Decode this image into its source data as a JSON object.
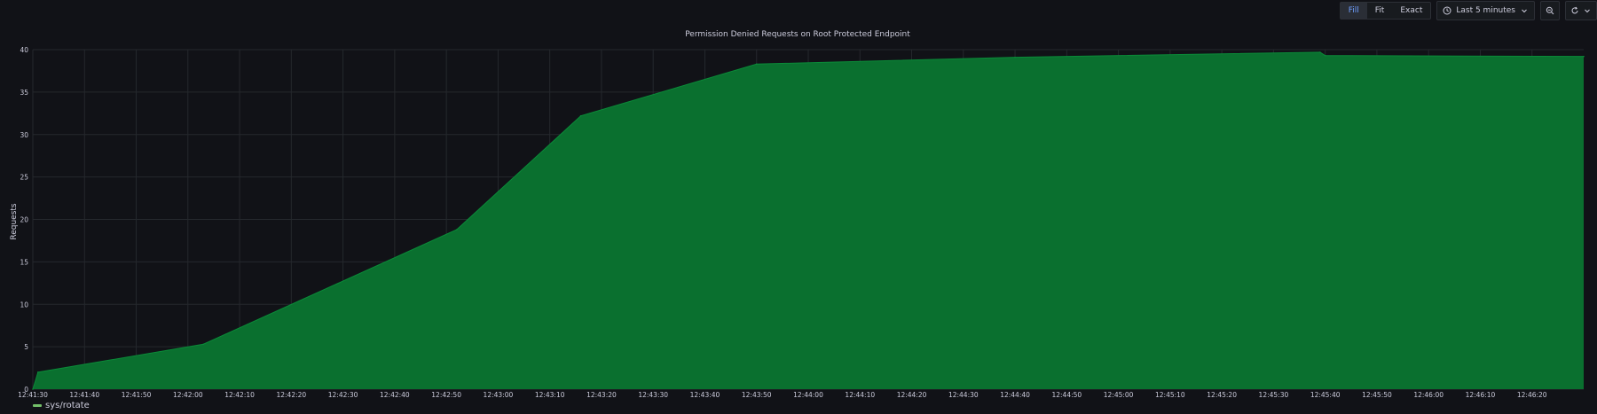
{
  "toolbar": {
    "fill_label": "Fill",
    "fit_label": "Fit",
    "exact_label": "Exact",
    "time_range_label": "Last 5 minutes",
    "icons": [
      "clock-icon",
      "chevron-down-icon",
      "zoom-out-icon",
      "refresh-icon",
      "chevron-down-icon"
    ]
  },
  "colors": {
    "background": "#111217",
    "fill": "#0a702f",
    "line": "#0a8a38",
    "legend": "#73bf69",
    "grid": "#25282d",
    "text": "#ccccdc"
  },
  "chart_data": {
    "type": "area",
    "title": "Permission Denied Requests on Root Protected Endpoint",
    "xlabel": "",
    "ylabel": "Requests",
    "ylim": [
      0,
      40
    ],
    "yticks": [
      0,
      5,
      10,
      15,
      20,
      25,
      30,
      35,
      40
    ],
    "xlim": [
      "12:41:30",
      "12:46:30"
    ],
    "xticks": [
      "12:41:30",
      "12:41:40",
      "12:41:50",
      "12:42:00",
      "12:42:10",
      "12:42:20",
      "12:42:30",
      "12:42:40",
      "12:42:50",
      "12:43:00",
      "12:43:10",
      "12:43:20",
      "12:43:30",
      "12:43:40",
      "12:43:50",
      "12:44:00",
      "12:44:10",
      "12:44:20",
      "12:44:30",
      "12:44:40",
      "12:44:50",
      "12:45:00",
      "12:45:10",
      "12:45:20",
      "12:45:30",
      "12:45:40",
      "12:45:50",
      "12:46:00",
      "12:46:10",
      "12:46:20"
    ],
    "grid": true,
    "legend": "bottom-left",
    "series": [
      {
        "name": "sys/rotate",
        "color": "#0a702f",
        "x": [
          "12:41:30",
          "12:41:31",
          "12:42:03",
          "12:42:52",
          "12:43:16",
          "12:43:50",
          "12:44:40",
          "12:45:39",
          "12:45:40",
          "12:46:30"
        ],
        "y": [
          0,
          2,
          5.3,
          18.8,
          32.2,
          38.3,
          39.1,
          39.7,
          39.3,
          39.2
        ]
      }
    ]
  }
}
